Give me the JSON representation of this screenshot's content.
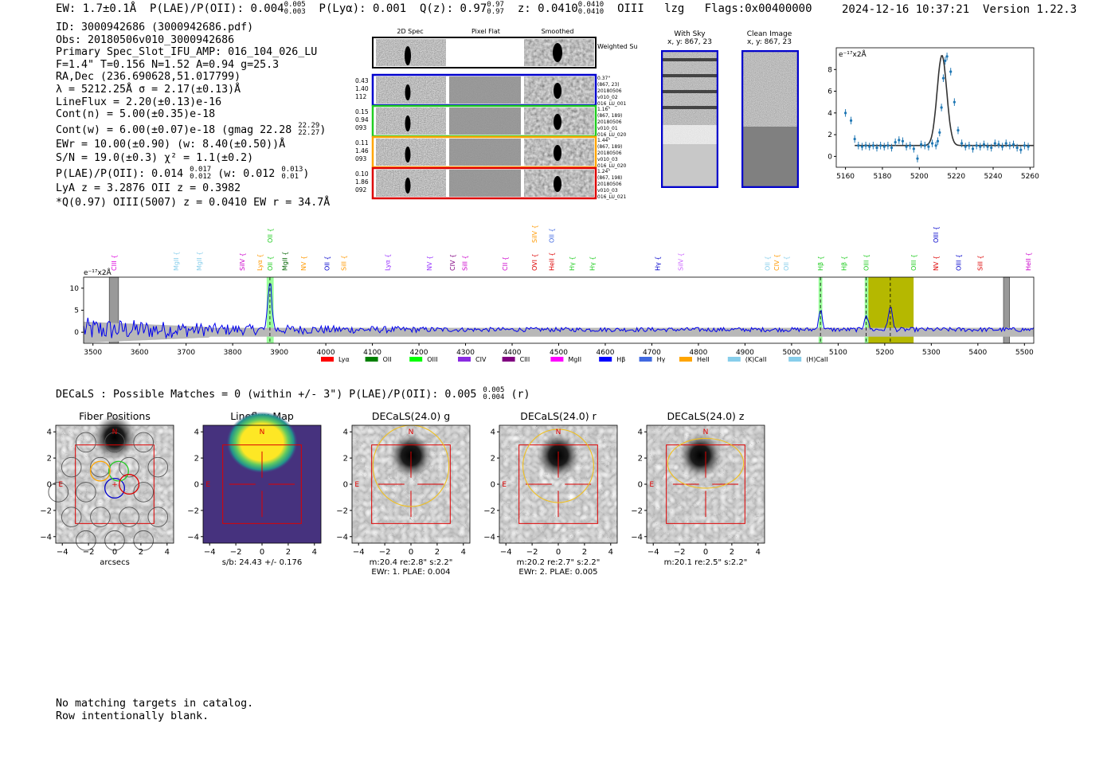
{
  "header": {
    "ew": "EW: 1.7±0.1Å",
    "plae_label": "P(LAE)/P(OII): 0.004",
    "plae_hi": "0.005",
    "plae_lo": "0.003",
    "plya": "P(Lyα): 0.001",
    "qz_label": "Q(z): 0.97",
    "qz_hi": "0.97",
    "qz_lo": "0.97",
    "z_label": "z: 0.0410",
    "z_hi": "0.0410",
    "z_lo": "0.0410",
    "line": "OIII",
    "lzg": "lzg",
    "flags": "Flags:0x00400000",
    "timestamp": "2024-12-16 10:37:21",
    "version": "Version 1.22.3"
  },
  "info": {
    "id": "ID: 3000942686 (3000942686.pdf)",
    "obs": "Obs: 20180506v010_3000942686",
    "primary": "Primary Spec_Slot_IFU_AMP: 016_104_026_LU",
    "fwhm": "F=1.4\"  T=0.156  N=1.52  A=0.94  g=25.3",
    "radec": "RA,Dec (236.690628,51.017799)",
    "lambda": "λ = 5212.25Å  σ = 2.17(±0.13)Å",
    "lineflux": "LineFlux = 2.20(±0.13)e-16",
    "contn": "Cont(n) = 5.00(±0.35)e-18",
    "contw": "Cont(w) = 6.00(±0.07)e-18 (gmag 22.28",
    "contw_hi": "22.29",
    "contw_lo": "22.27",
    "contw_end": ")",
    "ewr": "EWr = 10.00(±0.90) (w: 8.40(±0.50))Å",
    "sn": "S/N = 19.0(±0.3)  χ² = 1.1(±0.2)",
    "plae2": "P(LAE)/P(OII): 0.014",
    "plae2_hi": "0.017",
    "plae2_lo": "0.012",
    "plae2_w": "(w: 0.012",
    "plae2_w_hi": "0.013",
    "plae2_w_lo": "0.01",
    "plae2_end": ")",
    "lya": "LyA z = 3.2876  OII z = 0.3982",
    "q": "*Q(0.97) OIII(5007) z = 0.0410  EW r = 34.7Å"
  },
  "cutouts": {
    "col_2d": "2D Spec",
    "col_flat": "Pixel Flat",
    "col_smooth": "Smoothed",
    "weighted": "Weighted Sum",
    "rows": [
      {
        "left": [
          "0.43",
          "1.40",
          "112"
        ],
        "right": [
          "0.37\"",
          "(867, 23)",
          "20180506",
          "v010_02",
          "016_LU_001"
        ],
        "color": "#0000cc"
      },
      {
        "left": [
          "0.15",
          "0.94",
          "093"
        ],
        "right": [
          "1.16\"",
          "(867, 189)",
          "20180506",
          "v010_01",
          "016_LU_020"
        ],
        "color": "#22cc22"
      },
      {
        "left": [
          "0.11",
          "1.46",
          "093"
        ],
        "right": [
          "1.44\"",
          "(867, 189)",
          "20180506",
          "v010_03",
          "016_LU_020"
        ],
        "color": "#ffa500"
      },
      {
        "left": [
          "0.10",
          "1.86",
          "092"
        ],
        "right": [
          "1.24\"",
          "(867, 198)",
          "20180506",
          "v010_03",
          "016_LU_021"
        ],
        "color": "#dd0000"
      }
    ]
  },
  "sky": {
    "with_sky": "With Sky",
    "with_sky_xy": "x, y: 867, 23",
    "clean": "Clean Image",
    "clean_xy": "x, y: 867, 23"
  },
  "zoom_chart": {
    "type": "line",
    "units": "e⁻¹⁷x2Å",
    "xlim": [
      5155,
      5262
    ],
    "ylim": [
      -1,
      10
    ],
    "xticks": [
      5160,
      5180,
      5200,
      5220,
      5240,
      5260
    ],
    "yticks": [
      0,
      2,
      4,
      6,
      8
    ],
    "points_x": [
      5160,
      5163,
      5165,
      5167,
      5169,
      5171,
      5173,
      5175,
      5177,
      5179,
      5181,
      5183,
      5185,
      5187,
      5189,
      5191,
      5193,
      5195,
      5197,
      5199,
      5201,
      5203,
      5205,
      5207,
      5209,
      5210,
      5211,
      5212,
      5213,
      5214,
      5215,
      5217,
      5219,
      5221,
      5223,
      5225,
      5227,
      5229,
      5231,
      5233,
      5235,
      5237,
      5239,
      5241,
      5243,
      5245,
      5247,
      5249,
      5251,
      5253,
      5255,
      5257,
      5259
    ],
    "points_y": [
      4.0,
      3.3,
      1.6,
      1.0,
      0.9,
      1.0,
      0.9,
      1.0,
      0.8,
      1.0,
      0.9,
      1.0,
      0.8,
      1.3,
      1.5,
      1.4,
      0.9,
      1.0,
      0.7,
      -0.2,
      1.1,
      1.0,
      0.9,
      1.2,
      1.0,
      1.4,
      2.2,
      4.5,
      7.2,
      8.8,
      9.2,
      7.8,
      5.0,
      2.4,
      1.2,
      0.9,
      1.0,
      0.7,
      1.0,
      0.9,
      1.1,
      0.9,
      0.8,
      1.2,
      1.1,
      0.9,
      1.2,
      1.0,
      1.1,
      0.8,
      0.6,
      1.0,
      0.9
    ]
  },
  "full_spectrum": {
    "type": "line",
    "units": "e⁻¹⁷x2Å",
    "xlim": [
      3480,
      5520
    ],
    "ylim": [
      -2.5,
      12.5
    ],
    "xticks": [
      3500,
      3600,
      3700,
      3800,
      3900,
      4000,
      4100,
      4200,
      4300,
      4400,
      4500,
      4600,
      4700,
      4800,
      4900,
      5000,
      5100,
      5200,
      5300,
      5400,
      5500
    ],
    "yticks": [
      0,
      5,
      10
    ],
    "emission_peaks": [
      {
        "x": 3880,
        "height": 11.5
      },
      {
        "x": 5062,
        "height": 4.5
      },
      {
        "x": 5160,
        "height": 3.5
      },
      {
        "x": 5212,
        "height": 5.5
      }
    ],
    "highlight_green": [
      [
        3873,
        3888
      ],
      [
        5058,
        5066
      ],
      [
        5157,
        5165
      ]
    ],
    "highlight_olive": [
      5165,
      5262
    ],
    "hatch_bands": [
      [
        3535,
        3555
      ],
      [
        5455,
        5468
      ]
    ],
    "dashed_lines": [
      3880,
      5062,
      5160,
      5212
    ],
    "line_labels": [
      {
        "x": 3545,
        "label": "CIII",
        "color": "#dd00dd",
        "row": 1
      },
      {
        "x": 3678,
        "label": "MgII",
        "color": "#87ceeb",
        "row": 1
      },
      {
        "x": 3728,
        "label": "MgII",
        "color": "#87ceeb",
        "row": 1
      },
      {
        "x": 3820,
        "label": "SiIV",
        "color": "#cc00cc",
        "row": 1
      },
      {
        "x": 3858,
        "label": "Lyα",
        "color": "#ff9900",
        "row": 1
      },
      {
        "x": 3880,
        "label": "OII",
        "color": "#22cc22",
        "row": 1
      },
      {
        "x": 3880,
        "label": "OII",
        "color": "#22cc22",
        "row": 0
      },
      {
        "x": 3912,
        "label": "MgII",
        "color": "#006400",
        "row": 1
      },
      {
        "x": 3952,
        "label": "NV",
        "color": "#ff9900",
        "row": 1
      },
      {
        "x": 4002,
        "label": "OII",
        "color": "#0000cc",
        "row": 1
      },
      {
        "x": 4038,
        "label": "SiII",
        "color": "#ff9900",
        "row": 1
      },
      {
        "x": 4132,
        "label": "Lyα",
        "color": "#9933ff",
        "row": 1
      },
      {
        "x": 4222,
        "label": "NV",
        "color": "#9933ff",
        "row": 1
      },
      {
        "x": 4272,
        "label": "CIV",
        "color": "#800080",
        "row": 1
      },
      {
        "x": 4298,
        "label": "SiII",
        "color": "#cc00cc",
        "row": 1
      },
      {
        "x": 4385,
        "label": "CII",
        "color": "#cc00cc",
        "row": 1
      },
      {
        "x": 4448,
        "label": "OVI",
        "color": "#dd0000",
        "row": 1
      },
      {
        "x": 4448,
        "label": "SiIV",
        "color": "#ff9900",
        "row": 0
      },
      {
        "x": 4485,
        "label": "HeII",
        "color": "#dd0000",
        "row": 1
      },
      {
        "x": 4485,
        "label": "OII",
        "color": "#4169e1",
        "row": 0
      },
      {
        "x": 4528,
        "label": "Hγ",
        "color": "#22cc22",
        "row": 1
      },
      {
        "x": 4572,
        "label": "Hγ",
        "color": "#22cc22",
        "row": 1
      },
      {
        "x": 4712,
        "label": "Hγ",
        "color": "#0000cc",
        "row": 1
      },
      {
        "x": 4762,
        "label": "SiIV",
        "color": "#cc66ff",
        "row": 1
      },
      {
        "x": 4948,
        "label": "OII",
        "color": "#87ceeb",
        "row": 1
      },
      {
        "x": 4968,
        "label": "CIV",
        "color": "#ff9900",
        "row": 1
      },
      {
        "x": 4988,
        "label": "OII",
        "color": "#87ceeb",
        "row": 1
      },
      {
        "x": 5062,
        "label": "Hβ",
        "color": "#22cc22",
        "row": 1
      },
      {
        "x": 5112,
        "label": "Hβ",
        "color": "#22cc22",
        "row": 1
      },
      {
        "x": 5160,
        "label": "OIII",
        "color": "#22cc22",
        "row": 1
      },
      {
        "x": 5262,
        "label": "OIII",
        "color": "#22cc22",
        "row": 1
      },
      {
        "x": 5310,
        "label": "NV",
        "color": "#dd0000",
        "row": 1
      },
      {
        "x": 5310,
        "label": "OIII",
        "color": "#0000cc",
        "row": 0
      },
      {
        "x": 5358,
        "label": "OIII",
        "color": "#0000cc",
        "row": 1
      },
      {
        "x": 5405,
        "label": "SiII",
        "color": "#dd0000",
        "row": 1
      },
      {
        "x": 5508,
        "label": "HeII",
        "color": "#cc00cc",
        "row": 1
      }
    ],
    "legend": [
      {
        "label": "Lyα",
        "color": "#ff0000"
      },
      {
        "label": "OII",
        "color": "#008000"
      },
      {
        "label": "OIII",
        "color": "#00ff00"
      },
      {
        "label": "CIV",
        "color": "#8a2be2"
      },
      {
        "label": "CIII",
        "color": "#800080"
      },
      {
        "label": "MgII",
        "color": "#ff00ff"
      },
      {
        "label": "Hβ",
        "color": "#0000ff"
      },
      {
        "label": "Hγ",
        "color": "#4169e1"
      },
      {
        "label": "HeII",
        "color": "#ffa500"
      },
      {
        "label": "(K)CaII",
        "color": "#87ceeb"
      },
      {
        "label": "(H)CaII",
        "color": "#87ceeb"
      }
    ]
  },
  "decals": {
    "summary": "DECaLS : Possible Matches = 0 (within +/- 3\")  P(LAE)/P(OII): 0.005",
    "summary_hi": "0.005",
    "summary_lo": "0.004",
    "summary_end": "(r)",
    "ticks": [
      -4,
      -2,
      0,
      2,
      4
    ],
    "north": "N",
    "east": "E",
    "panels": [
      {
        "title": "Fiber Positions",
        "caption1": "arcsecs",
        "caption2": "",
        "kind": "fibers"
      },
      {
        "title": "Lineflux Map",
        "caption1": "s/b: 24.43 +/- 0.176",
        "caption2": "",
        "kind": "lineflux"
      },
      {
        "title": "DECaLS(24.0) g",
        "caption1": "m:20.4  re:2.8\"  s:2.2\"",
        "caption2": "EWr: 1. PLAE: 0.004",
        "kind": "g"
      },
      {
        "title": "DECaLS(24.0) r",
        "caption1": "m:20.2  re:2.7\"  s:2.2\"",
        "caption2": "EWr: 2. PLAE: 0.005",
        "kind": "r"
      },
      {
        "title": "DECaLS(24.0) z",
        "caption1": "m:20.1  re:2.5\"  s:2.2\"",
        "caption2": "",
        "kind": "z"
      }
    ]
  },
  "footer": {
    "line1": "No matching targets in catalog.",
    "line2": "Row intentionally blank."
  }
}
